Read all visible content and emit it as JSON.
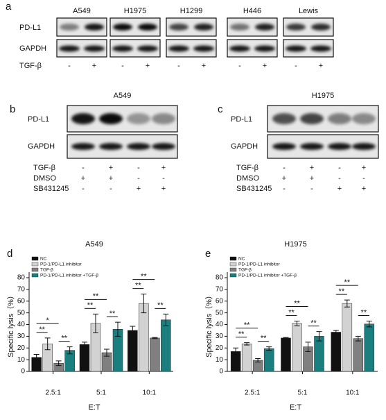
{
  "blot_a": {
    "label": "a",
    "cell_lines": [
      "A549",
      "H1975",
      "H1299",
      "H446",
      "Lewis"
    ],
    "rows": [
      "PD-L1",
      "GAPDH"
    ],
    "treatment": "TGF-β",
    "signs": [
      "-",
      "+",
      "-",
      "+",
      "-",
      "+",
      "-",
      "+",
      "-",
      "+"
    ]
  },
  "blot_b": {
    "label": "b",
    "title": "A549",
    "rows": [
      "PD-L1",
      "GAPDH"
    ],
    "treatments": [
      {
        "name": "TGF-β",
        "signs": [
          "-",
          "+",
          "-",
          "+"
        ]
      },
      {
        "name": "DMSO",
        "signs": [
          "+",
          "+",
          "-",
          "-"
        ]
      },
      {
        "name": "SB431245",
        "signs": [
          "-",
          "-",
          "+",
          "+"
        ]
      }
    ]
  },
  "blot_c": {
    "label": "c",
    "title": "H1975",
    "rows": [
      "PD-L1",
      "GAPDH"
    ],
    "treatments": [
      {
        "name": "TGF-β",
        "signs": [
          "-",
          "+",
          "-",
          "+"
        ]
      },
      {
        "name": "DMSO",
        "signs": [
          "+",
          "+",
          "-",
          "-"
        ]
      },
      {
        "name": "SB431245",
        "signs": [
          "-",
          "-",
          "+",
          "+"
        ]
      }
    ]
  },
  "chart_data": [
    {
      "type": "bar",
      "label": "d",
      "title": "A549",
      "x_label": "E:T",
      "y_label": "Specific lysis（%）",
      "categories": [
        "2.5:1",
        "5:1",
        "10:1"
      ],
      "series": [
        {
          "name": "NC",
          "color": "#111111",
          "values": [
            12,
            23,
            35
          ],
          "errors": [
            2.5,
            2,
            3.5
          ]
        },
        {
          "name": "PD-1/PD-L1 inhibitor",
          "color": "#d2d2d2",
          "values": [
            23.5,
            41,
            58
          ],
          "errors": [
            5,
            8,
            8
          ]
        },
        {
          "name": "TGF-β",
          "color": "#808080",
          "values": [
            7,
            16,
            28.5
          ],
          "errors": [
            2,
            3,
            0.5
          ]
        },
        {
          "name": "PD-1/PD-L1 inhibitor +TGF-β",
          "color": "#1b7f7f",
          "values": [
            18,
            36,
            44
          ],
          "errors": [
            3,
            6,
            5
          ]
        }
      ],
      "ylim": [
        0,
        80
      ],
      "yticks": [
        0,
        10,
        20,
        30,
        40,
        50,
        60,
        70,
        80
      ],
      "annotations": [
        {
          "text": "**",
          "category": 0,
          "pair": [
            0,
            1
          ]
        },
        {
          "text": "**",
          "category": 0,
          "pair": [
            2,
            3
          ]
        },
        {
          "text": "*",
          "category": 0,
          "pair": [
            0,
            2
          ]
        },
        {
          "text": "**",
          "category": 1,
          "pair": [
            0,
            1
          ]
        },
        {
          "text": "**",
          "category": 1,
          "pair": [
            2,
            3
          ]
        },
        {
          "text": "**",
          "category": 1,
          "pair": [
            0,
            2
          ]
        },
        {
          "text": "**",
          "category": 2,
          "pair": [
            0,
            1
          ]
        },
        {
          "text": "**",
          "category": 2,
          "pair": [
            2,
            3
          ]
        },
        {
          "text": "**",
          "category": 2,
          "pair": [
            0,
            2
          ]
        }
      ]
    },
    {
      "type": "bar",
      "label": "e",
      "title": "H1975",
      "x_label": "E:T",
      "y_label": "Specific lysis（%）",
      "categories": [
        "2.5:1",
        "5:1",
        "10:1"
      ],
      "series": [
        {
          "name": "NC",
          "color": "#111111",
          "values": [
            17,
            28.5,
            33.5
          ],
          "errors": [
            3,
            0.5,
            1.5
          ]
        },
        {
          "name": "PD-1/PD-L1 inhibitor",
          "color": "#d2d2d2",
          "values": [
            23.5,
            41,
            58
          ],
          "errors": [
            1,
            2,
            3
          ]
        },
        {
          "name": "TGF-β",
          "color": "#808080",
          "values": [
            9.5,
            21,
            28
          ],
          "errors": [
            1.5,
            4,
            2
          ]
        },
        {
          "name": "PD-1/PD-L1 inhibitor +TGF-β",
          "color": "#1b7f7f",
          "values": [
            19.5,
            30,
            40.5
          ],
          "errors": [
            1.5,
            4,
            2.5
          ]
        }
      ],
      "ylim": [
        0,
        80
      ],
      "yticks": [
        0,
        10,
        20,
        30,
        40,
        50,
        60,
        70,
        80
      ],
      "annotations": [
        {
          "text": "**",
          "category": 0,
          "pair": [
            0,
            1
          ]
        },
        {
          "text": "**",
          "category": 0,
          "pair": [
            2,
            3
          ]
        },
        {
          "text": "**",
          "category": 0,
          "pair": [
            0,
            2
          ]
        },
        {
          "text": "**",
          "category": 1,
          "pair": [
            0,
            1
          ]
        },
        {
          "text": "**",
          "category": 1,
          "pair": [
            2,
            3
          ]
        },
        {
          "text": "**",
          "category": 1,
          "pair": [
            0,
            2
          ]
        },
        {
          "text": "**",
          "category": 2,
          "pair": [
            0,
            1
          ]
        },
        {
          "text": "**",
          "category": 2,
          "pair": [
            2,
            3
          ]
        },
        {
          "text": "**",
          "category": 2,
          "pair": [
            0,
            2
          ]
        }
      ]
    }
  ]
}
